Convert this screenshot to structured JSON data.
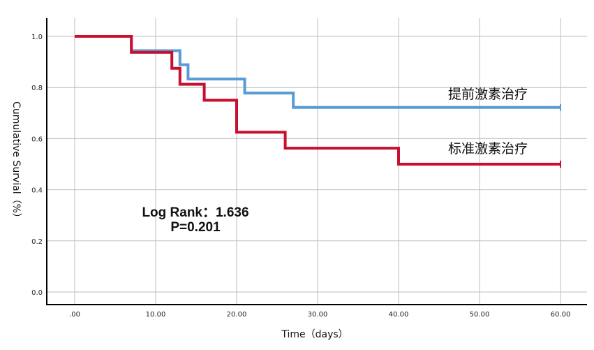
{
  "chart_data": {
    "type": "line",
    "subtype": "kaplan-meier-step",
    "title": "",
    "xlabel": "Time（days）",
    "ylabel": "Cumulative Survial（%）",
    "xlim": [
      -3,
      63
    ],
    "ylim": [
      -0.05,
      1.05
    ],
    "x_ticks": [
      0,
      10,
      20,
      30,
      40,
      50,
      60
    ],
    "x_tick_labels": [
      ".00",
      "10.00",
      "20.00",
      "30.00",
      "40.00",
      "50.00",
      "60.00"
    ],
    "y_ticks": [
      0.0,
      0.2,
      0.4,
      0.6,
      0.8,
      1.0
    ],
    "y_tick_labels": [
      "0.0",
      "0.2",
      "0.4",
      "0.6",
      "0.8",
      "1.0"
    ],
    "grid": true,
    "series": [
      {
        "name": "提前激素治疗",
        "color": "#5b9bd5",
        "x": [
          0,
          7,
          13,
          14,
          21,
          27,
          60
        ],
        "y": [
          1.0,
          0.944,
          0.889,
          0.833,
          0.778,
          0.722,
          0.722
        ],
        "censored_x": [
          60
        ]
      },
      {
        "name": "标准激素治疗",
        "color": "#c8102e",
        "x": [
          0,
          7,
          12,
          13,
          16,
          20,
          26,
          40,
          60
        ],
        "y": [
          1.0,
          0.9375,
          0.875,
          0.8125,
          0.75,
          0.625,
          0.5625,
          0.5,
          0.5
        ],
        "censored_x": [
          60
        ]
      }
    ],
    "annotations": [
      "Log Rank：1.636",
      "P=0.201"
    ]
  }
}
